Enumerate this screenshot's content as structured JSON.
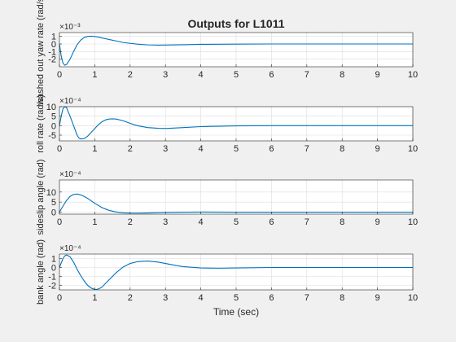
{
  "title": "Outputs for L1011",
  "xlabel": "Time (sec)",
  "colors": {
    "line": "#0072bd",
    "grid": "#dcdcdc",
    "axes": "#262626",
    "figure_bg": "#f0f0f0",
    "plot_bg": "#ffffff"
  },
  "chart_data": [
    {
      "type": "line",
      "ylabel": "washed out yaw rate (rad/s)",
      "exponent_label": "×10⁻³",
      "xlim": [
        0,
        10
      ],
      "ylim": [
        -3,
        1.5
      ],
      "xticks": [
        0,
        1,
        2,
        3,
        4,
        5,
        6,
        7,
        8,
        9,
        10
      ],
      "yticks": [
        -2,
        -1,
        0,
        1
      ],
      "grid": true,
      "series": [
        {
          "x": [
            0,
            0.05,
            0.1,
            0.15,
            0.2,
            0.3,
            0.4,
            0.5,
            0.6,
            0.7,
            0.8,
            0.9,
            1.0,
            1.1,
            1.2,
            1.4,
            1.6,
            1.8,
            2.0,
            2.2,
            2.5,
            2.8,
            3.0,
            3.5,
            4,
            5,
            6,
            7,
            8,
            9,
            10
          ],
          "y": [
            0,
            -1.6,
            -2.5,
            -2.8,
            -2.7,
            -2.0,
            -1.0,
            -0.1,
            0.5,
            0.85,
            1.0,
            1.02,
            0.98,
            0.9,
            0.8,
            0.6,
            0.4,
            0.2,
            0.08,
            -0.02,
            -0.12,
            -0.15,
            -0.14,
            -0.1,
            -0.05,
            -0.02,
            0,
            0,
            0,
            0,
            0
          ]
        }
      ]
    },
    {
      "type": "line",
      "ylabel": "roll rate (rad/s)",
      "exponent_label": "×10⁻⁴",
      "xlim": [
        0,
        10
      ],
      "ylim": [
        -8,
        10
      ],
      "xticks": [
        0,
        1,
        2,
        3,
        4,
        5,
        6,
        7,
        8,
        9,
        10
      ],
      "yticks": [
        -5,
        0,
        5,
        10
      ],
      "grid": true,
      "series": [
        {
          "x": [
            0,
            0.05,
            0.1,
            0.15,
            0.2,
            0.3,
            0.4,
            0.5,
            0.55,
            0.6,
            0.7,
            0.8,
            0.9,
            1.0,
            1.1,
            1.2,
            1.3,
            1.4,
            1.5,
            1.6,
            1.8,
            2.0,
            2.2,
            2.5,
            2.8,
            3.0,
            3.5,
            4,
            5,
            6,
            7,
            8,
            9,
            10
          ],
          "y": [
            0,
            5,
            9,
            10,
            9.5,
            5,
            0,
            -5,
            -6.5,
            -7,
            -6.8,
            -5.5,
            -3.5,
            -1.5,
            0.5,
            2,
            3,
            3.5,
            3.6,
            3.5,
            2.6,
            1.2,
            0,
            -1,
            -1.4,
            -1.5,
            -1,
            -0.5,
            -0.1,
            0,
            0,
            0,
            0,
            0
          ]
        }
      ]
    },
    {
      "type": "line",
      "ylabel": "sideslip angle (rad)",
      "exponent_label": "×10⁻⁴",
      "xlim": [
        0,
        10
      ],
      "ylim": [
        -1,
        16
      ],
      "xticks": [
        0,
        1,
        2,
        3,
        4,
        5,
        6,
        7,
        8,
        9,
        10
      ],
      "yticks": [
        0,
        5,
        10
      ],
      "grid": true,
      "series": [
        {
          "x": [
            0,
            0.1,
            0.2,
            0.3,
            0.4,
            0.5,
            0.6,
            0.7,
            0.8,
            0.9,
            1.0,
            1.2,
            1.4,
            1.6,
            1.8,
            2.0,
            2.2,
            2.5,
            2.8,
            3.0,
            3.5,
            4,
            5,
            6,
            7,
            8,
            9,
            10
          ],
          "y": [
            0,
            3,
            5.8,
            7.8,
            8.8,
            9.0,
            8.6,
            7.8,
            6.8,
            5.6,
            4.4,
            2.3,
            0.9,
            0.1,
            -0.3,
            -0.5,
            -0.5,
            -0.4,
            -0.2,
            -0.1,
            0,
            0.05,
            0,
            0,
            0,
            0,
            0,
            0
          ]
        }
      ]
    },
    {
      "type": "line",
      "ylabel": "bank angle (rad)",
      "exponent_label": "×10⁻⁴",
      "xlim": [
        0,
        10
      ],
      "ylim": [
        -2.5,
        1.5
      ],
      "xticks": [
        0,
        1,
        2,
        3,
        4,
        5,
        6,
        7,
        8,
        9,
        10
      ],
      "yticks": [
        -2,
        -1,
        0,
        1
      ],
      "grid": true,
      "series": [
        {
          "x": [
            0,
            0.05,
            0.1,
            0.15,
            0.2,
            0.3,
            0.4,
            0.5,
            0.6,
            0.7,
            0.8,
            0.9,
            1.0,
            1.05,
            1.1,
            1.2,
            1.3,
            1.4,
            1.5,
            1.6,
            1.8,
            2.0,
            2.2,
            2.5,
            2.8,
            3.0,
            3.3,
            3.5,
            4.0,
            4.5,
            5,
            6,
            7,
            8,
            9,
            10
          ],
          "y": [
            0,
            0.5,
            1.0,
            1.3,
            1.4,
            1.2,
            0.6,
            -0.2,
            -0.9,
            -1.5,
            -2.0,
            -2.3,
            -2.45,
            -2.45,
            -2.4,
            -2.2,
            -1.8,
            -1.4,
            -1.0,
            -0.6,
            0.05,
            0.45,
            0.65,
            0.72,
            0.6,
            0.45,
            0.22,
            0.1,
            -0.05,
            -0.08,
            -0.05,
            0,
            0,
            0,
            0,
            0
          ]
        }
      ]
    }
  ]
}
